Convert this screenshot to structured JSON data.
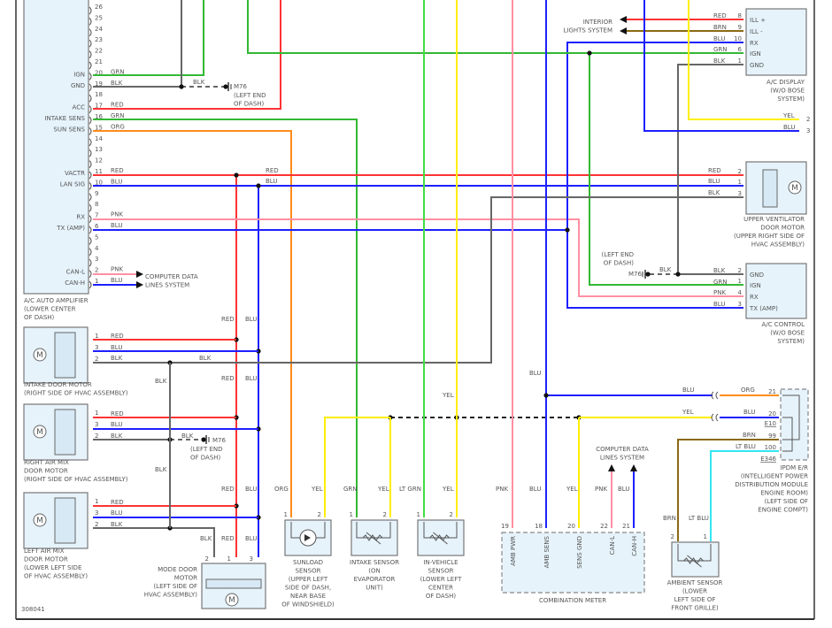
{
  "diagram_id": "308041",
  "colors": {
    "RED": "#ff3333",
    "BLU": "#1f1fff",
    "GRN": "#33b833",
    "BLK": "#666666",
    "PNK": "#ff8fa3",
    "ORG": "#ff8c1a",
    "YEL": "#ffee00",
    "BRN": "#8b6914",
    "LTBLU": "#33e6f0",
    "LTGRN": "#44dd44",
    "DASH": "#222222",
    "box_fill": "#e6f3fb"
  },
  "amplifier": {
    "label": [
      "A/C AUTO AMPLIFIER",
      "(LOWER CENTER",
      "OF DASH)"
    ],
    "pins": [
      {
        "num": "26",
        "func": "",
        "wire": ""
      },
      {
        "num": "25",
        "func": "",
        "wire": ""
      },
      {
        "num": "24",
        "func": "",
        "wire": ""
      },
      {
        "num": "23",
        "func": "",
        "wire": ""
      },
      {
        "num": "22",
        "func": "",
        "wire": ""
      },
      {
        "num": "21",
        "func": "",
        "wire": ""
      },
      {
        "num": "20",
        "func": "IGN",
        "wire": "GRN"
      },
      {
        "num": "19",
        "func": "GND",
        "wire": "BLK"
      },
      {
        "num": "18",
        "func": "",
        "wire": ""
      },
      {
        "num": "17",
        "func": "ACC",
        "wire": "RED"
      },
      {
        "num": "16",
        "func": "INTAKE SENS",
        "wire": "GRN"
      },
      {
        "num": "15",
        "func": "SUN SENS",
        "wire": "ORG"
      },
      {
        "num": "14",
        "func": "",
        "wire": ""
      },
      {
        "num": "13",
        "func": "",
        "wire": ""
      },
      {
        "num": "12",
        "func": "",
        "wire": ""
      },
      {
        "num": "11",
        "func": "VACTR",
        "wire": "RED"
      },
      {
        "num": "10",
        "func": "LAN SIG",
        "wire": "BLU"
      },
      {
        "num": "9",
        "func": "",
        "wire": ""
      },
      {
        "num": "8",
        "func": "",
        "wire": ""
      },
      {
        "num": "7",
        "func": "RX",
        "wire": "PNK"
      },
      {
        "num": "6",
        "func": "TX (AMP)",
        "wire": "BLU"
      },
      {
        "num": "5",
        "func": "",
        "wire": ""
      },
      {
        "num": "4",
        "func": "",
        "wire": ""
      },
      {
        "num": "3",
        "func": "",
        "wire": ""
      },
      {
        "num": "2",
        "func": "CAN-L",
        "wire": "PNK"
      },
      {
        "num": "1",
        "func": "CAN-H",
        "wire": "BLU"
      }
    ]
  },
  "components": {
    "display": {
      "label": [
        "A/C DISPLAY",
        "(W/O BOSE",
        "SYSTEM)"
      ],
      "pins": [
        {
          "num": "8",
          "func": "ILL +"
        },
        {
          "num": "9",
          "func": "ILL -"
        },
        {
          "num": "10",
          "func": "RX"
        },
        {
          "num": "6",
          "func": "IGN"
        },
        {
          "num": "1",
          "func": "GND"
        }
      ]
    },
    "bose_pins": [
      "2",
      "3"
    ],
    "upper_vent": {
      "label": [
        "UPPER VENTILATOR",
        "DOOR MOTOR",
        "(UPPER RIGHT SIDE OF",
        "HVAC ASSEMBLY)"
      ],
      "pins": [
        "2",
        "1",
        "3"
      ],
      "motor": "M"
    },
    "control": {
      "label": [
        "A/C CONTROL",
        "(W/O BOSE",
        "SYSTEM)"
      ],
      "pins": [
        {
          "num": "2",
          "func": "GND"
        },
        {
          "num": "1",
          "func": "IGN"
        },
        {
          "num": "4",
          "func": "RX"
        },
        {
          "num": "3",
          "func": "TX (AMP)"
        }
      ]
    },
    "intake_motor": {
      "label": [
        "INTAKE DOOR MOTOR",
        "(RIGHT SIDE OF HVAC ASSEMBLY)"
      ],
      "pins": [
        "1",
        "3",
        "2"
      ],
      "motor": "M"
    },
    "right_mix": {
      "label": [
        "RIGHT AIR MIX",
        "DOOR MOTOR",
        "(RIGHT SIDE OF HVAC ASSEMBLY)"
      ],
      "pins": [
        "1",
        "3",
        "2"
      ],
      "motor": "M"
    },
    "left_mix": {
      "label": [
        "LEFT AIR MIX",
        "DOOR MOTOR",
        "(LOWER LEFT SIDE",
        "OF HVAC ASSEMBLY)"
      ],
      "pins": [
        "1",
        "3",
        "2"
      ],
      "motor": "M"
    },
    "mode_door": {
      "label": [
        "MODE DOOR",
        "MOTOR",
        "(LEFT SIDE OF",
        "HVAC ASSEMBLY)"
      ],
      "pins": [
        "2",
        "1",
        "3"
      ],
      "motor": "M"
    },
    "sunload": {
      "label": [
        "SUNLOAD",
        "SENSOR",
        "(UPPER LEFT",
        "SIDE OF DASH,",
        "NEAR BASE",
        "OF WINDSHIELD)"
      ],
      "pins": [
        "1",
        "2"
      ]
    },
    "intake_sensor": {
      "label": [
        "INTAKE SENSOR",
        "(ON",
        "EVAPORATOR",
        "UNIT)"
      ],
      "pins": [
        "1",
        "2"
      ]
    },
    "in_vehicle": {
      "label": [
        "IN-VEHICLE",
        "SENSOR",
        "(LOWER LEFT",
        "CENTER",
        "OF DASH)"
      ],
      "pins": [
        "1",
        "2"
      ]
    },
    "meter": {
      "label": [
        "COMBINATION METER"
      ],
      "pins": [
        {
          "num": "19",
          "func": "AMB PWR"
        },
        {
          "num": "18",
          "func": "AMB SENS"
        },
        {
          "num": "20",
          "func": "SENS GND"
        },
        {
          "num": "22",
          "func": "CAN-L"
        },
        {
          "num": "21",
          "func": "CAN-H"
        }
      ]
    },
    "ambient": {
      "label": [
        "AMBIENT SENSOR",
        "(LOWER",
        "LEFT SIDE OF",
        "FRONT GRILLE)"
      ],
      "pins": [
        "2",
        "1"
      ]
    },
    "ipdm": {
      "label": [
        "IPDM E/R",
        "(INTELLIGENT POWER",
        "DISTRIBUTION MODULE",
        "ENGINE ROOM)",
        "(LEFT SIDE OF",
        "ENGINE COMPT)"
      ],
      "pins": [
        "21",
        "20",
        "99",
        "100"
      ],
      "connectors": [
        "E10",
        "E346"
      ]
    }
  },
  "refs": {
    "interior_lights": [
      "INTERIOR",
      "LIGHTS SYSTEM"
    ],
    "cdl_left": [
      "COMPUTER DATA",
      "LINES SYSTEM"
    ],
    "cdl_meter": [
      "COMPUTER DATA",
      "LINES SYSTEM"
    ],
    "ground": {
      "name": "M76",
      "loc": [
        "(LEFT END",
        "OF DASH)"
      ]
    }
  },
  "wire_labels": [
    "GRN",
    "BLK",
    "RED",
    "GRN",
    "ORG",
    "RED",
    "BLU",
    "PNK",
    "BLU",
    "PNK",
    "BLU",
    "BLK",
    "RED",
    "BLU",
    "RED",
    "BRN",
    "BLU",
    "GRN",
    "BLK",
    "YEL",
    "BLU",
    "RED",
    "BLU",
    "BLK",
    "BLK",
    "BLK",
    "GRN",
    "PNK",
    "BLU",
    "RED",
    "BLU",
    "BLK",
    "BLK",
    "RED",
    "BLU",
    "BLK",
    "BLK",
    "RED",
    "BLU",
    "BLK",
    "BLK",
    "BLK",
    "RED",
    "BLU",
    "RED",
    "BLU",
    "RED",
    "BLU",
    "BLK",
    "RED",
    "BLU",
    "ORG",
    "YEL",
    "GRN",
    "YEL",
    "LT GRN",
    "YEL",
    "YEL",
    "PNK",
    "BLU",
    "YEL",
    "PNK",
    "BLU",
    "BLU",
    "BLU",
    "ORG",
    "YEL",
    "BLU",
    "BRN",
    "LT BLU",
    "BRN",
    "LT BLU"
  ]
}
